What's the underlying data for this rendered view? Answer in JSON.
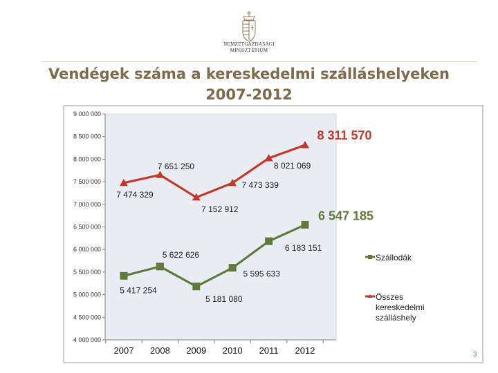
{
  "header": {
    "ministry_line1": "NEMZETGAZDASÁGI",
    "ministry_line2": "MINISZTÉRIUM",
    "title_line1": "Vendégek száma a kereskedelmi szálláshelyeken",
    "title_line2": "2007-2012"
  },
  "page_number": "3",
  "colors": {
    "title": "#7e6a4a",
    "plot_background": "#e9edf3",
    "series_total": "#c0392b",
    "series_hotels": "#5f7a3a"
  },
  "chart_data": {
    "type": "line",
    "categories": [
      "2007",
      "2008",
      "2009",
      "2010",
      "2011",
      "2012"
    ],
    "ylim": [
      4000000,
      9000000
    ],
    "y_ticks": [
      {
        "value": 4000000,
        "label": "4 000 000"
      },
      {
        "value": 4500000,
        "label": "4 500 000"
      },
      {
        "value": 5000000,
        "label": "5 000 000"
      },
      {
        "value": 5500000,
        "label": "5 500 000"
      },
      {
        "value": 6000000,
        "label": "6 000 000"
      },
      {
        "value": 6500000,
        "label": "6 500 000"
      },
      {
        "value": 7000000,
        "label": "7 000 000"
      },
      {
        "value": 7500000,
        "label": "7 500 000"
      },
      {
        "value": 8000000,
        "label": "8 000 000"
      },
      {
        "value": 8500000,
        "label": "8 500 000"
      },
      {
        "value": 9000000,
        "label": "9 000 000"
      }
    ],
    "grid": false,
    "legend_position": "right",
    "series": [
      {
        "name": "Összes kereskedelmi szálláshely",
        "legend_lines": [
          "Összes",
          "kereskedelmi",
          "szálláshely"
        ],
        "color": "#c0392b",
        "marker": "triangle",
        "values": [
          7474329,
          7651250,
          7152912,
          7473339,
          8021069,
          8311570
        ],
        "labels": [
          "7 474 329",
          "7 651 250",
          "7 152 912",
          "7 473 339",
          "8 021 069",
          "8 311 570"
        ]
      },
      {
        "name": "Szállodák",
        "legend_lines": [
          "Szállodák"
        ],
        "color": "#5f7a3a",
        "marker": "square",
        "values": [
          5417254,
          5622626,
          5181080,
          5595633,
          6183151,
          6547185
        ],
        "labels": [
          "5 417 254",
          "5 622 626",
          "5 181 080",
          "5 595 633",
          "6 183 151",
          "6 547 185"
        ]
      }
    ]
  }
}
